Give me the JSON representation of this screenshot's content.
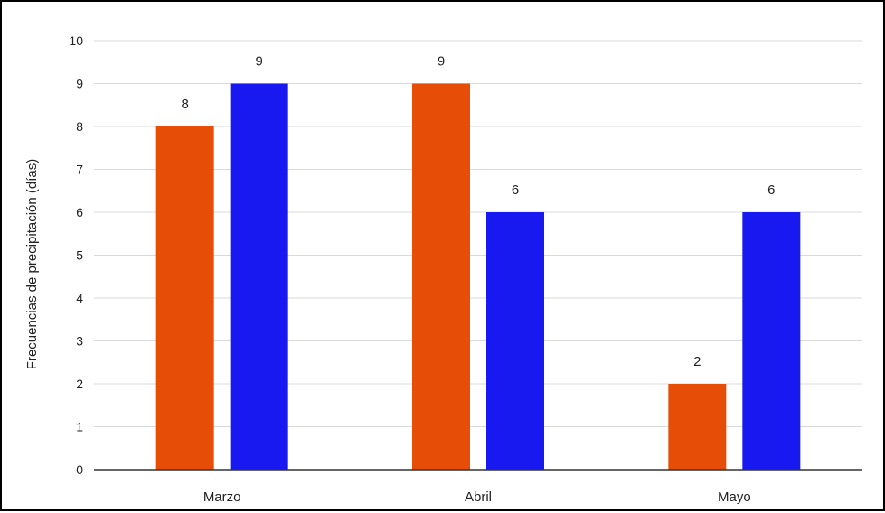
{
  "chart_data": {
    "type": "bar",
    "title": "",
    "xlabel": "",
    "ylabel": "Frecuencias de precipitación (días)",
    "categories": [
      "Marzo",
      "Abril",
      "Mayo"
    ],
    "series": [
      {
        "values": [
          8,
          9,
          2
        ],
        "color": "#e64d06"
      },
      {
        "values": [
          9,
          6,
          6
        ],
        "color": "#1818f0"
      }
    ],
    "ylim": [
      0,
      10
    ],
    "yticks": [
      0,
      1,
      2,
      3,
      4,
      5,
      6,
      7,
      8,
      9,
      10
    ],
    "grid": true,
    "legend": "none",
    "data_labels": true
  }
}
